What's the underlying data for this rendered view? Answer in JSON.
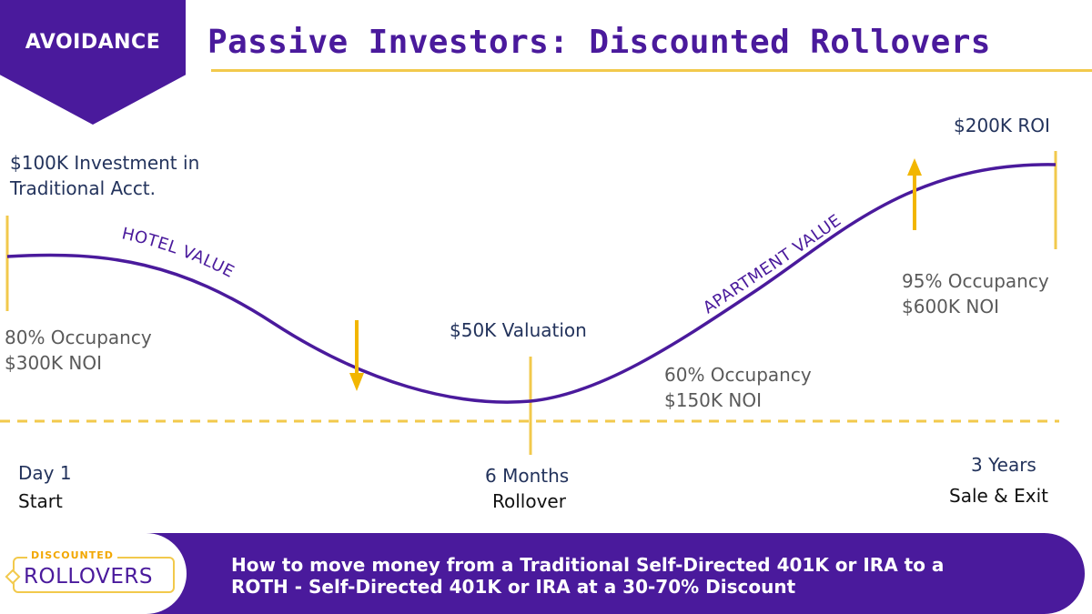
{
  "header": {
    "badge": "AVOIDANCE",
    "title": "Passive Investors: Discounted Rollovers"
  },
  "diagram": {
    "left_curve_label": "HOTEL VALUE",
    "right_curve_label": "APARTMENT VALUE",
    "start": {
      "investment_line1": "$100K Investment in",
      "investment_line2": "Traditional Acct.",
      "occupancy": "80% Occupancy",
      "noi": "$300K NOI",
      "time": "Day 1",
      "event": "Start"
    },
    "middle": {
      "valuation": "$50K Valuation",
      "occupancy": "60% Occupancy",
      "noi": "$150K NOI",
      "time": "6 Months",
      "event": "Rollover"
    },
    "end": {
      "roi": "$200K ROI",
      "occupancy": "95% Occupancy",
      "noi": "$600K NOI",
      "time": "3 Years",
      "event": "Sale & Exit"
    }
  },
  "footer": {
    "logo_top": "DISCOUNTED",
    "logo_main": "ROLLOVERS",
    "line1": "How to move money from a Traditional Self-Directed 401K or IRA to a",
    "line2": "ROTH - Self-Directed 401K or IRA at a 30-70% Discount"
  },
  "colors": {
    "purple": "#4a1a9c",
    "gold": "#f2c94c",
    "navy": "#23335c"
  }
}
